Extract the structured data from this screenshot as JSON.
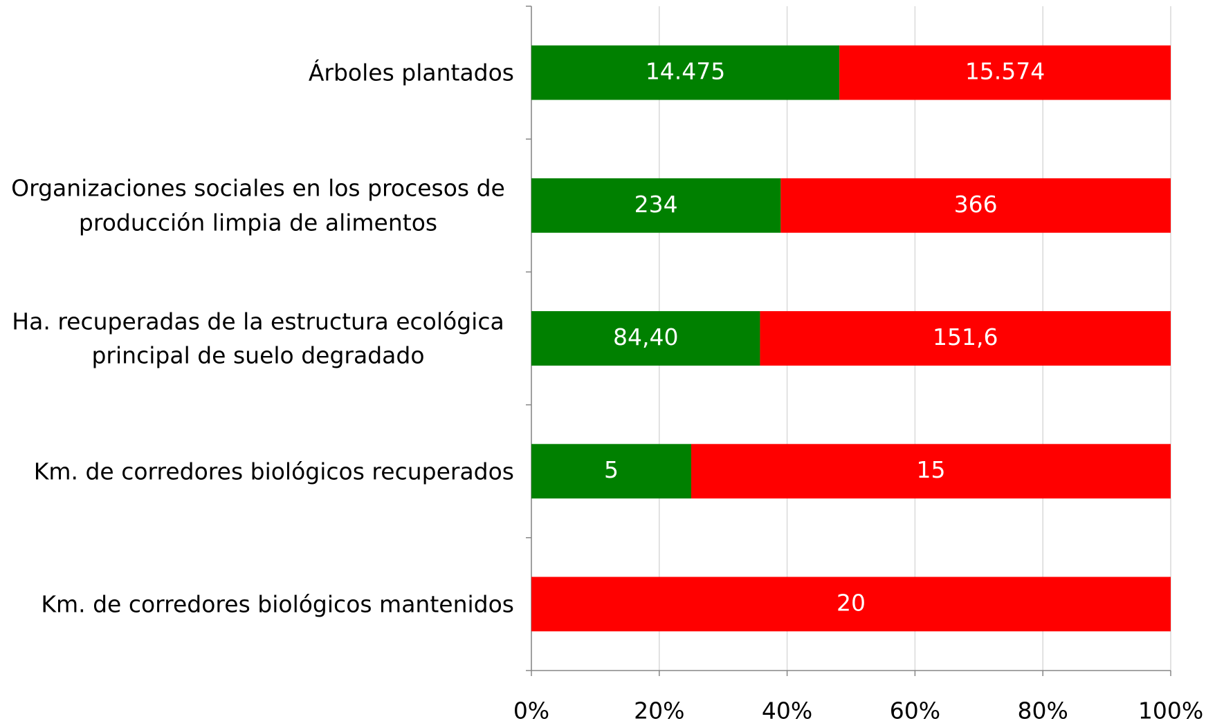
{
  "chart_data": {
    "type": "bar",
    "orientation": "horizontal",
    "stacked_percent": true,
    "categories": [
      "Árboles plantados",
      "Organizaciones sociales en los procesos de producción limpia de alimentos",
      "Ha. recuperadas de la estructura ecológica principal de suelo degradado",
      "Km. de corredores biológicos recuperados",
      "Km. de corredores biológicos mantenidos"
    ],
    "series": [
      {
        "color": "#008000",
        "values": [
          14475,
          234,
          84.4,
          5,
          0
        ],
        "value_labels": [
          "14.475",
          "234",
          "84,40",
          "5",
          null
        ]
      },
      {
        "color": "#ff0000",
        "values": [
          15574,
          366,
          151.6,
          15,
          20
        ],
        "value_labels": [
          "15.574",
          "366",
          "151,6",
          "15",
          "20"
        ]
      }
    ],
    "xlim": [
      0,
      100
    ],
    "xticks": [
      {
        "value": 0,
        "label": "0%"
      },
      {
        "value": 20,
        "label": "20%"
      },
      {
        "value": 40,
        "label": "40%"
      },
      {
        "value": 60,
        "label": "60%"
      },
      {
        "value": 80,
        "label": "80%"
      },
      {
        "value": 100,
        "label": "100%"
      }
    ],
    "grid": true
  }
}
